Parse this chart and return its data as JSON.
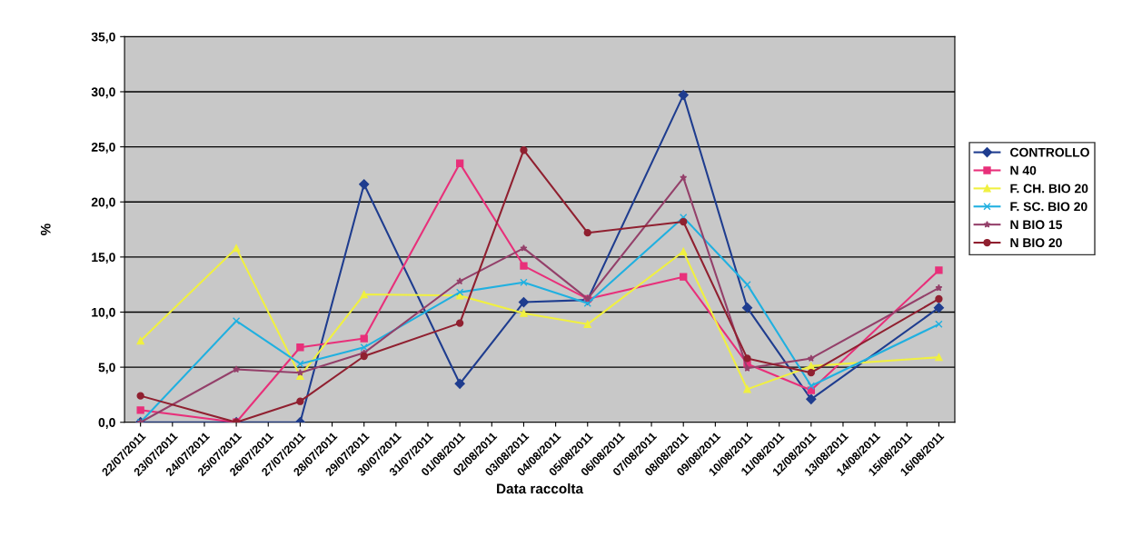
{
  "chart_data": {
    "type": "line",
    "xlabel": "Data raccolta",
    "ylabel": "%",
    "x": [
      "2011-07-22",
      "2011-07-25",
      "2011-07-27",
      "2011-07-29",
      "2011-08-01",
      "2011-08-03",
      "2011-08-05",
      "2011-08-08",
      "2011-08-10",
      "2011-08-12",
      "2011-08-16"
    ],
    "series": [
      {
        "name": "CONTROLLO",
        "color": "#1f3d8f",
        "marker": "diamond",
        "values": [
          0,
          0,
          0,
          21.6,
          3.5,
          10.9,
          11.1,
          29.7,
          10.4,
          2.1,
          10.4
        ]
      },
      {
        "name": "N 40",
        "color": "#e8307a",
        "marker": "square",
        "values": [
          1.1,
          0,
          6.8,
          7.6,
          23.5,
          14.2,
          11.2,
          13.2,
          5.3,
          2.9,
          13.8
        ]
      },
      {
        "name": "F. CH. BIO 20",
        "color": "#f0f040",
        "marker": "triangle",
        "values": [
          7.4,
          15.8,
          4.2,
          11.6,
          11.5,
          9.9,
          8.9,
          15.5,
          3.0,
          5.1,
          5.9
        ]
      },
      {
        "name": "F. SC. BIO 20",
        "color": "#20b0e0",
        "marker": "cross",
        "values": [
          0,
          9.2,
          5.3,
          6.8,
          11.8,
          12.7,
          10.8,
          18.6,
          12.5,
          3.3,
          8.9
        ]
      },
      {
        "name": "N BIO 15",
        "color": "#94406a",
        "marker": "star",
        "values": [
          0,
          4.8,
          4.5,
          6.3,
          12.8,
          15.8,
          11.2,
          22.2,
          4.9,
          5.8,
          12.2
        ]
      },
      {
        "name": "N BIO 20",
        "color": "#902030",
        "marker": "circle",
        "values": [
          2.4,
          0,
          1.9,
          6.0,
          9.0,
          24.7,
          17.2,
          18.2,
          5.8,
          4.5,
          11.2
        ]
      }
    ],
    "xlim": [
      "2011-07-21T12:00",
      "2011-08-16T12:00"
    ],
    "xticks": [
      {
        "value": "2011-07-22",
        "label": "22/07/2011"
      },
      {
        "value": "2011-07-23",
        "label": "23/07/2011"
      },
      {
        "value": "2011-07-24",
        "label": "24/07/2011"
      },
      {
        "value": "2011-07-25",
        "label": "25/07/2011"
      },
      {
        "value": "2011-07-26",
        "label": "26/07/2011"
      },
      {
        "value": "2011-07-27",
        "label": "27/07/2011"
      },
      {
        "value": "2011-07-28",
        "label": "28/07/2011"
      },
      {
        "value": "2011-07-29",
        "label": "29/07/2011"
      },
      {
        "value": "2011-07-30",
        "label": "30/07/2011"
      },
      {
        "value": "2011-07-31",
        "label": "31/07/2011"
      },
      {
        "value": "2011-08-01",
        "label": "01/08/2011"
      },
      {
        "value": "2011-08-02",
        "label": "02/08/2011"
      },
      {
        "value": "2011-08-03",
        "label": "03/08/2011"
      },
      {
        "value": "2011-08-04",
        "label": "04/08/2011"
      },
      {
        "value": "2011-08-05",
        "label": "05/08/2011"
      },
      {
        "value": "2011-08-06",
        "label": "06/08/2011"
      },
      {
        "value": "2011-08-07",
        "label": "07/08/2011"
      },
      {
        "value": "2011-08-08",
        "label": "08/08/2011"
      },
      {
        "value": "2011-08-09",
        "label": "09/08/2011"
      },
      {
        "value": "2011-08-10",
        "label": "10/08/2011"
      },
      {
        "value": "2011-08-11",
        "label": "11/08/2011"
      },
      {
        "value": "2011-08-12",
        "label": "12/08/2011"
      },
      {
        "value": "2011-08-13",
        "label": "13/08/2011"
      },
      {
        "value": "2011-08-14",
        "label": "14/08/2011"
      },
      {
        "value": "2011-08-15",
        "label": "15/08/2011"
      },
      {
        "value": "2011-08-16",
        "label": "16/08/2011"
      }
    ],
    "ylim": [
      0,
      35
    ],
    "yticks": [
      {
        "value": 0,
        "label": "0,0"
      },
      {
        "value": 5,
        "label": "5,0"
      },
      {
        "value": 10,
        "label": "10,0"
      },
      {
        "value": 15,
        "label": "15,0"
      },
      {
        "value": 20,
        "label": "20,0"
      },
      {
        "value": 25,
        "label": "25,0"
      },
      {
        "value": 30,
        "label": "30,0"
      },
      {
        "value": 35,
        "label": "35,0"
      }
    ],
    "grid": "y",
    "legend": "right",
    "line_style": "solid"
  }
}
